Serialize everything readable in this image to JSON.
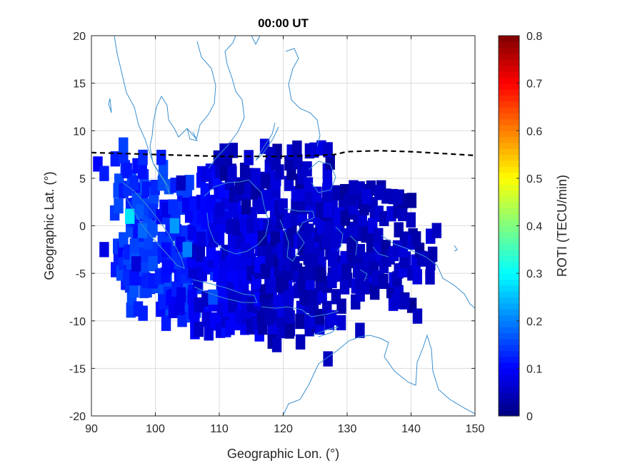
{
  "chart_data": {
    "type": "heatmap",
    "title": "00:00 UT",
    "xlabel": "Geographic Lon. (°)",
    "ylabel": "Geographic Lat. (°)",
    "xlim": [
      90,
      150
    ],
    "ylim": [
      -20,
      20
    ],
    "xticks": [
      90,
      100,
      110,
      120,
      130,
      140,
      150
    ],
    "xtick_labels": [
      "90",
      "100",
      "110",
      "120",
      "130",
      "140",
      "150"
    ],
    "yticks": [
      -20,
      -15,
      -10,
      -5,
      0,
      5,
      10,
      15,
      20
    ],
    "ytick_labels": [
      "-20",
      "-15",
      "-10",
      "-5",
      "0",
      "5",
      "10",
      "15",
      "20"
    ],
    "grid": true,
    "colorbar": {
      "label": "ROTI (TECU/min)",
      "colormap": "jet",
      "range": [
        0,
        0.8
      ],
      "ticks": [
        0,
        0.1,
        0.2,
        0.3,
        0.4,
        0.5,
        0.6,
        0.7,
        0.8
      ],
      "tick_labels": [
        "0",
        "0.1",
        "0.2",
        "0.3",
        "0.4",
        "0.5",
        "0.6",
        "0.7",
        "0.8"
      ]
    },
    "magnetic_equator": {
      "style": "dashed black",
      "points": [
        [
          90,
          7.7
        ],
        [
          95,
          7.6
        ],
        [
          100,
          7.5
        ],
        [
          105,
          7.4
        ],
        [
          110,
          7.3
        ],
        [
          115,
          7.3
        ],
        [
          120,
          7.3
        ],
        [
          125,
          7.4
        ],
        [
          128,
          7.5
        ],
        [
          130,
          7.8
        ],
        [
          135,
          7.9
        ],
        [
          140,
          7.8
        ],
        [
          145,
          7.6
        ],
        [
          150,
          7.4
        ]
      ]
    },
    "roti_bands": [
      {
        "lon": [
          94,
          101
        ],
        "lat": [
          -6,
          8
        ],
        "value": 0.13
      },
      {
        "lon": [
          96,
          106
        ],
        "lat": [
          -9,
          5
        ],
        "value": 0.14
      },
      {
        "lon": [
          101,
          112
        ],
        "lat": [
          -10,
          3
        ],
        "value": 0.11
      },
      {
        "lon": [
          106,
          119
        ],
        "lat": [
          -11,
          6
        ],
        "value": 0.08
      },
      {
        "lon": [
          112,
          121
        ],
        "lat": [
          -11,
          0
        ],
        "value": 0.07
      },
      {
        "lon": [
          117,
          126
        ],
        "lat": [
          -12,
          -1
        ],
        "value": 0.05
      },
      {
        "lon": [
          120,
          129
        ],
        "lat": [
          -10,
          2
        ],
        "value": 0.05
      },
      {
        "lon": [
          123,
          135
        ],
        "lat": [
          -6,
          4
        ],
        "value": 0.05
      },
      {
        "lon": [
          130,
          140
        ],
        "lat": [
          -8,
          3
        ],
        "value": 0.05
      },
      {
        "lon": [
          137,
          143
        ],
        "lat": [
          -5,
          -1
        ],
        "value": 0.05
      },
      {
        "lon": [
          110,
          127
        ],
        "lat": [
          2,
          8
        ],
        "value": 0.05
      }
    ],
    "roti_cells": [
      {
        "lon": 91,
        "lat": 6.5,
        "value": 0.1
      },
      {
        "lon": 92,
        "lat": 5.5,
        "value": 0.12
      },
      {
        "lon": 95,
        "lat": 8.5,
        "value": 0.15
      },
      {
        "lon": 96,
        "lat": 1,
        "value": 0.28
      },
      {
        "lon": 103,
        "lat": 0,
        "value": 0.22
      },
      {
        "lon": 105,
        "lat": -2.5,
        "value": 0.2
      },
      {
        "lon": 98,
        "lat": -0.5,
        "value": 0.18
      },
      {
        "lon": 109,
        "lat": -7.5,
        "value": 0.16
      },
      {
        "lon": 104,
        "lat": 4.5,
        "value": 0.05
      },
      {
        "lon": 112,
        "lat": 5.5,
        "value": 0.06
      },
      {
        "lon": 118,
        "lat": 7.5,
        "value": 0.05
      },
      {
        "lon": 127,
        "lat": 8,
        "value": 0.06
      },
      {
        "lon": 131,
        "lat": 4,
        "value": 0.05
      },
      {
        "lon": 135,
        "lat": 3.5,
        "value": 0.05
      },
      {
        "lon": 138,
        "lat": 3,
        "value": 0.05
      },
      {
        "lon": 144,
        "lat": -0.5,
        "value": 0.05
      },
      {
        "lon": 142,
        "lat": -3.5,
        "value": 0.05
      },
      {
        "lon": 141,
        "lat": -9.5,
        "value": 0.05
      },
      {
        "lon": 139,
        "lat": -8,
        "value": 0.05
      },
      {
        "lon": 132,
        "lat": -11,
        "value": 0.05
      },
      {
        "lon": 127,
        "lat": -14,
        "value": 0.05
      },
      {
        "lon": 119,
        "lat": -12.5,
        "value": 0.05
      },
      {
        "lon": 92,
        "lat": -2.5,
        "value": 0.08
      },
      {
        "lon": 97,
        "lat": -4,
        "value": 0.07
      }
    ]
  }
}
